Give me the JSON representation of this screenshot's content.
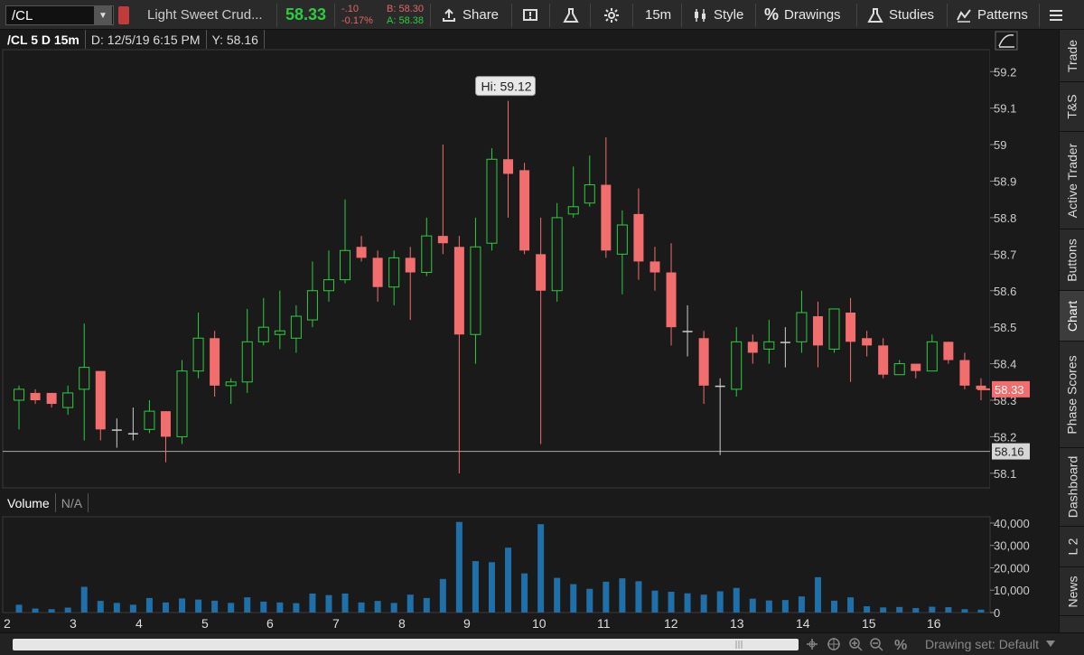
{
  "toolbar": {
    "symbol": "/CL",
    "description": "Light Sweet Crud...",
    "last": "58.33",
    "net_change": "-.10",
    "pct_change": "-0.17%",
    "bid": "B: 58.30",
    "ask": "A: 58.38",
    "share_label": "Share",
    "timeframe": "15m",
    "style_label": "Style",
    "drawings_label": "Drawings",
    "studies_label": "Studies",
    "patterns_label": "Patterns"
  },
  "header": {
    "series": "/CL 5 D 15m",
    "date": "D: 12/5/19 6:15 PM",
    "yvalue": "Y: 58.16"
  },
  "volume_panel": {
    "label": "Volume",
    "value": "N/A"
  },
  "right_tabs": [
    "Trade",
    "T&S",
    "Active Trader",
    "Buttons",
    "Chart",
    "Phase Scores",
    "Dashboard",
    "L 2",
    "News"
  ],
  "status": {
    "drawing_set": "Drawing set: Default"
  },
  "colors": {
    "up": "#2ecc40",
    "down": "#f26d6d",
    "volume": "#1f6fa8",
    "background": "#1a1a1a"
  },
  "chart_data": {
    "type": "candlestick",
    "price_ticks": [
      "59.2",
      "59.1",
      "59",
      "58.9",
      "58.8",
      "58.7",
      "58.6",
      "58.5",
      "58.4",
      "58.3",
      "58.2",
      "58.1"
    ],
    "price_range": [
      58.06,
      59.26
    ],
    "crosshair_price": "58.16",
    "last_price": "58.33",
    "high_label": "Hi: 59.12",
    "volume_ticks": [
      "40,000",
      "30,000",
      "20,000",
      "10,000",
      "0"
    ],
    "volume_range": [
      0,
      42000
    ],
    "x_labels": [
      "2",
      "3",
      "4",
      "5",
      "6",
      "7",
      "8",
      "9",
      "10",
      "11",
      "12",
      "13",
      "14",
      "15",
      "16"
    ],
    "candles": [
      {
        "o": 58.3,
        "h": 58.34,
        "l": 58.22,
        "c": 58.33
      },
      {
        "o": 58.32,
        "h": 58.33,
        "l": 58.29,
        "c": 58.3
      },
      {
        "o": 58.32,
        "h": 58.32,
        "l": 58.28,
        "c": 58.29
      },
      {
        "o": 58.28,
        "h": 58.34,
        "l": 58.26,
        "c": 58.32
      },
      {
        "o": 58.33,
        "h": 58.51,
        "l": 58.19,
        "c": 58.39
      },
      {
        "o": 58.38,
        "h": 58.38,
        "l": 58.19,
        "c": 58.22
      },
      {
        "o": 58.22,
        "h": 58.25,
        "l": 58.17,
        "c": 58.22
      },
      {
        "o": 58.21,
        "h": 58.28,
        "l": 58.19,
        "c": 58.21
      },
      {
        "o": 58.22,
        "h": 58.3,
        "l": 58.21,
        "c": 58.27
      },
      {
        "o": 58.27,
        "h": 58.27,
        "l": 58.13,
        "c": 58.2
      },
      {
        "o": 58.2,
        "h": 58.41,
        "l": 58.18,
        "c": 58.38
      },
      {
        "o": 58.38,
        "h": 58.54,
        "l": 58.36,
        "c": 58.47
      },
      {
        "o": 58.47,
        "h": 58.49,
        "l": 58.31,
        "c": 58.34
      },
      {
        "o": 58.34,
        "h": 58.36,
        "l": 58.29,
        "c": 58.35
      },
      {
        "o": 58.35,
        "h": 58.55,
        "l": 58.32,
        "c": 58.46
      },
      {
        "o": 58.46,
        "h": 58.58,
        "l": 58.45,
        "c": 58.5
      },
      {
        "o": 58.48,
        "h": 58.6,
        "l": 58.44,
        "c": 58.49
      },
      {
        "o": 58.47,
        "h": 58.56,
        "l": 58.43,
        "c": 58.53
      },
      {
        "o": 58.52,
        "h": 58.68,
        "l": 58.5,
        "c": 58.6
      },
      {
        "o": 58.6,
        "h": 58.71,
        "l": 58.57,
        "c": 58.63
      },
      {
        "o": 58.63,
        "h": 58.85,
        "l": 58.62,
        "c": 58.71
      },
      {
        "o": 58.72,
        "h": 58.75,
        "l": 58.68,
        "c": 58.69
      },
      {
        "o": 58.69,
        "h": 58.71,
        "l": 58.57,
        "c": 58.61
      },
      {
        "o": 58.61,
        "h": 58.71,
        "l": 58.56,
        "c": 58.69
      },
      {
        "o": 58.69,
        "h": 58.72,
        "l": 58.52,
        "c": 58.65
      },
      {
        "o": 58.65,
        "h": 58.8,
        "l": 58.64,
        "c": 58.75
      },
      {
        "o": 58.75,
        "h": 59.0,
        "l": 58.7,
        "c": 58.73
      },
      {
        "o": 58.72,
        "h": 58.75,
        "l": 58.1,
        "c": 58.48
      },
      {
        "o": 58.48,
        "h": 58.8,
        "l": 58.4,
        "c": 58.72
      },
      {
        "o": 58.73,
        "h": 58.99,
        "l": 58.71,
        "c": 58.96
      },
      {
        "o": 58.96,
        "h": 59.12,
        "l": 58.8,
        "c": 58.92
      },
      {
        "o": 58.93,
        "h": 58.95,
        "l": 58.7,
        "c": 58.71
      },
      {
        "o": 58.7,
        "h": 58.8,
        "l": 58.18,
        "c": 58.6
      },
      {
        "o": 58.6,
        "h": 58.84,
        "l": 58.57,
        "c": 58.8
      },
      {
        "o": 58.81,
        "h": 58.94,
        "l": 58.8,
        "c": 58.83
      },
      {
        "o": 58.84,
        "h": 58.97,
        "l": 58.83,
        "c": 58.89
      },
      {
        "o": 58.89,
        "h": 59.02,
        "l": 58.69,
        "c": 58.71
      },
      {
        "o": 58.7,
        "h": 58.82,
        "l": 58.59,
        "c": 58.78
      },
      {
        "o": 58.81,
        "h": 58.88,
        "l": 58.63,
        "c": 58.68
      },
      {
        "o": 58.68,
        "h": 58.72,
        "l": 58.6,
        "c": 58.65
      },
      {
        "o": 58.65,
        "h": 58.73,
        "l": 58.45,
        "c": 58.5
      },
      {
        "o": 58.49,
        "h": 58.56,
        "l": 58.42,
        "c": 58.49
      },
      {
        "o": 58.47,
        "h": 58.49,
        "l": 58.29,
        "c": 58.34
      },
      {
        "o": 58.34,
        "h": 58.36,
        "l": 58.15,
        "c": 58.34
      },
      {
        "o": 58.33,
        "h": 58.5,
        "l": 58.31,
        "c": 58.46
      },
      {
        "o": 58.46,
        "h": 58.48,
        "l": 58.4,
        "c": 58.43
      },
      {
        "o": 58.44,
        "h": 58.52,
        "l": 58.4,
        "c": 58.46
      },
      {
        "o": 58.46,
        "h": 58.5,
        "l": 58.39,
        "c": 58.46
      },
      {
        "o": 58.46,
        "h": 58.6,
        "l": 58.43,
        "c": 58.54
      },
      {
        "o": 58.53,
        "h": 58.57,
        "l": 58.39,
        "c": 58.45
      },
      {
        "o": 58.44,
        "h": 58.55,
        "l": 58.43,
        "c": 58.55
      },
      {
        "o": 58.54,
        "h": 58.58,
        "l": 58.35,
        "c": 58.46
      },
      {
        "o": 58.47,
        "h": 58.49,
        "l": 58.42,
        "c": 58.45
      },
      {
        "o": 58.45,
        "h": 58.47,
        "l": 58.36,
        "c": 58.37
      },
      {
        "o": 58.37,
        "h": 58.41,
        "l": 58.37,
        "c": 58.4
      },
      {
        "o": 58.4,
        "h": 58.4,
        "l": 58.36,
        "c": 58.38
      },
      {
        "o": 58.38,
        "h": 58.48,
        "l": 58.38,
        "c": 58.46
      },
      {
        "o": 58.46,
        "h": 58.46,
        "l": 58.4,
        "c": 58.41
      },
      {
        "o": 58.41,
        "h": 58.43,
        "l": 58.33,
        "c": 58.34
      },
      {
        "o": 58.34,
        "h": 58.36,
        "l": 58.3,
        "c": 58.33
      }
    ],
    "volumes": [
      3500,
      1800,
      1500,
      2200,
      11500,
      5200,
      4300,
      3500,
      6500,
      4500,
      6300,
      5800,
      5300,
      4300,
      6800,
      4900,
      4500,
      4200,
      8500,
      7800,
      8500,
      4500,
      5200,
      4300,
      8000,
      6500,
      15000,
      40500,
      23000,
      22500,
      29000,
      17500,
      39500,
      15500,
      12700,
      10600,
      13800,
      15300,
      14000,
      9800,
      9300,
      8600,
      8000,
      9500,
      11000,
      6200,
      5400,
      5600,
      7200,
      15800,
      5300,
      6800,
      2800,
      2300,
      2500,
      2000,
      2600,
      2400,
      1500,
      1300
    ]
  }
}
